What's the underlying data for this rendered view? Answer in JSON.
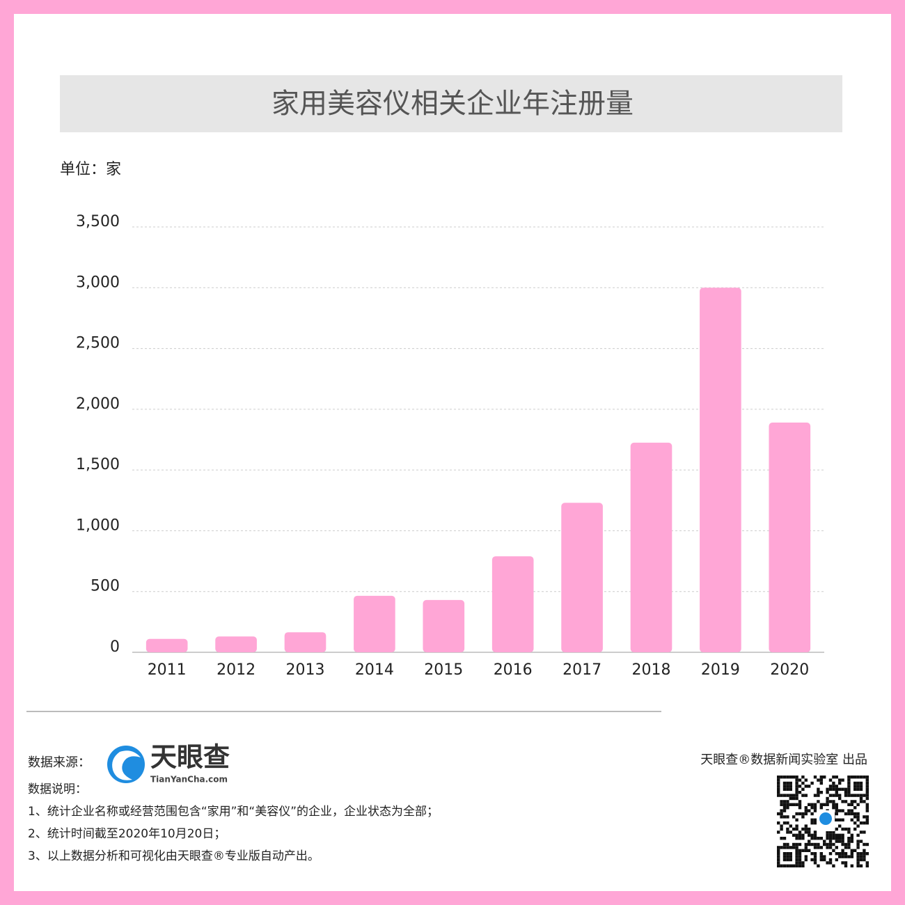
{
  "chart_data": {
    "type": "bar",
    "title": "家用美容仪相关企业年注册量",
    "unit_label": "单位：家",
    "categories": [
      "2011",
      "2012",
      "2013",
      "2014",
      "2015",
      "2016",
      "2017",
      "2018",
      "2019",
      "2020"
    ],
    "values": [
      110,
      130,
      165,
      465,
      430,
      790,
      1230,
      1725,
      3000,
      1890
    ],
    "color": "#ffa6d6",
    "ylim": [
      0,
      3500
    ],
    "yticks": [
      0,
      500,
      {
        "value": 1000,
        "label": "1,000"
      },
      {
        "value": 1500,
        "label": "1,500"
      },
      {
        "value": 2000,
        "label": "2,000"
      },
      {
        "value": 2500,
        "label": "2,500"
      },
      {
        "value": 3000,
        "label": "3,000"
      },
      {
        "value": 3500,
        "label": "3,500"
      }
    ],
    "grid": true
  },
  "footer": {
    "source_label": "数据来源：",
    "logo_name": "天眼查",
    "logo_url": "TianYanCha.com",
    "notes_title": "数据说明：",
    "notes": [
      "1、统计企业名称或经营范围包含“家用”和“美容仪”的企业，企业状态为全部；",
      "2、统计时间截至2020年10月20日；",
      "3、以上数据分析和可视化由天眼查®专业版自动产出。"
    ],
    "producer": "天眼查®数据新闻实验室 出品"
  }
}
